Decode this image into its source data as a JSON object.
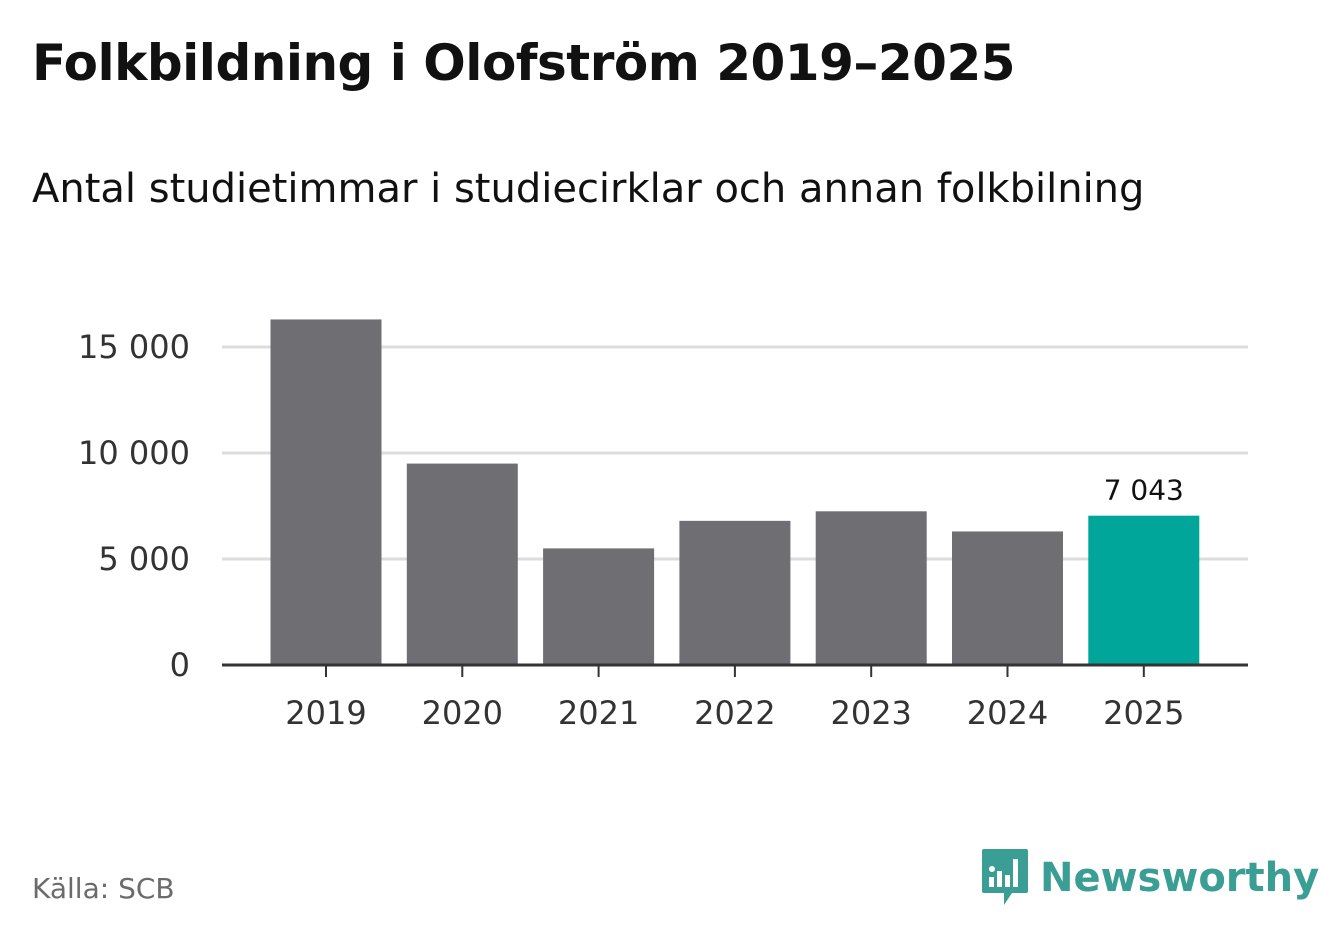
{
  "header": {
    "title": "Folkbildning i Olofström 2019–2025",
    "subtitle": "Antal studietimmar i studiecirklar och annan folkbilning"
  },
  "footer": {
    "source": "Källa: SCB",
    "brand": "Newsworthy",
    "brand_icon": "newsworthy-logo-icon"
  },
  "colors": {
    "bar_default": "#6e6e73",
    "bar_highlight": "#00a699",
    "gridline": "#dcdcdc",
    "axis": "#333333",
    "brand": "#3a9e94"
  },
  "chart_data": {
    "type": "bar",
    "title": "Folkbildning i Olofström 2019–2025",
    "subtitle": "Antal studietimmar i studiecirklar och annan folkbilning",
    "categories": [
      "2019",
      "2020",
      "2021",
      "2022",
      "2023",
      "2024",
      "2025"
    ],
    "values": [
      16300,
      9500,
      5500,
      6800,
      7250,
      6300,
      7043
    ],
    "highlight_index": 6,
    "data_labels": [
      {
        "index": 6,
        "text": "7 043"
      }
    ],
    "ylim": [
      0,
      16500
    ],
    "yticks": [
      0,
      5000,
      10000,
      15000
    ],
    "ytick_labels": [
      "0",
      "5 000",
      "10 000",
      "15 000"
    ],
    "xlabel": "",
    "ylabel": "",
    "grid": true,
    "legend": "none"
  }
}
